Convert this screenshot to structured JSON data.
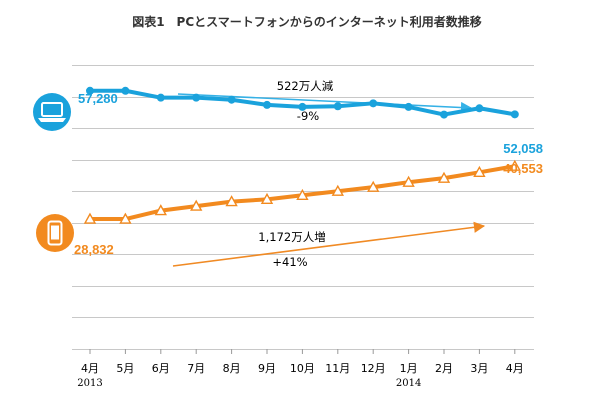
{
  "title": "図表1　PCとスマートフォンからのインターネット利用者数推移",
  "colors": {
    "pc": "#1aa2dc",
    "smartphone": "#f28a1f",
    "grid": "#c8c8c8",
    "arrow_pc": "#35b1e6",
    "arrow_sp": "#f08a24"
  },
  "icons": {
    "pc": "laptop-icon",
    "smartphone": "smartphone-icon"
  },
  "chart_data": {
    "type": "line",
    "title": "図表1　PCとスマートフォンからのインターネット利用者数推移",
    "categories": [
      "4月",
      "5月",
      "6月",
      "7月",
      "8月",
      "9月",
      "10月",
      "11月",
      "12月",
      "1月",
      "2月",
      "3月",
      "4月"
    ],
    "year_labels": [
      {
        "index": 0,
        "text": "2013"
      },
      {
        "index": 9,
        "text": "2014"
      }
    ],
    "ylim": [
      0,
      63000
    ],
    "grid": true,
    "series": [
      {
        "key": "pc",
        "marker": "circle",
        "icon": "laptop-icon",
        "values": [
          57280,
          57280,
          55750,
          55750,
          55300,
          54150,
          53700,
          53850,
          54500,
          53700,
          52000,
          53400,
          52058
        ],
        "start_label": "57,280",
        "end_label": "52,058"
      },
      {
        "key": "smartphone",
        "marker": "triangle",
        "icon": "smartphone-icon",
        "values": [
          28832,
          28832,
          30700,
          31700,
          32700,
          33200,
          34100,
          35000,
          35900,
          37000,
          37900,
          39200,
          40553
        ],
        "start_label": "28,832",
        "end_label": "40,553"
      }
    ],
    "annotations": [
      {
        "series": "pc",
        "lines": [
          "522万人減",
          "-9%"
        ]
      },
      {
        "series": "smartphone",
        "lines": [
          "1,172万人増",
          "+41%"
        ]
      }
    ]
  }
}
